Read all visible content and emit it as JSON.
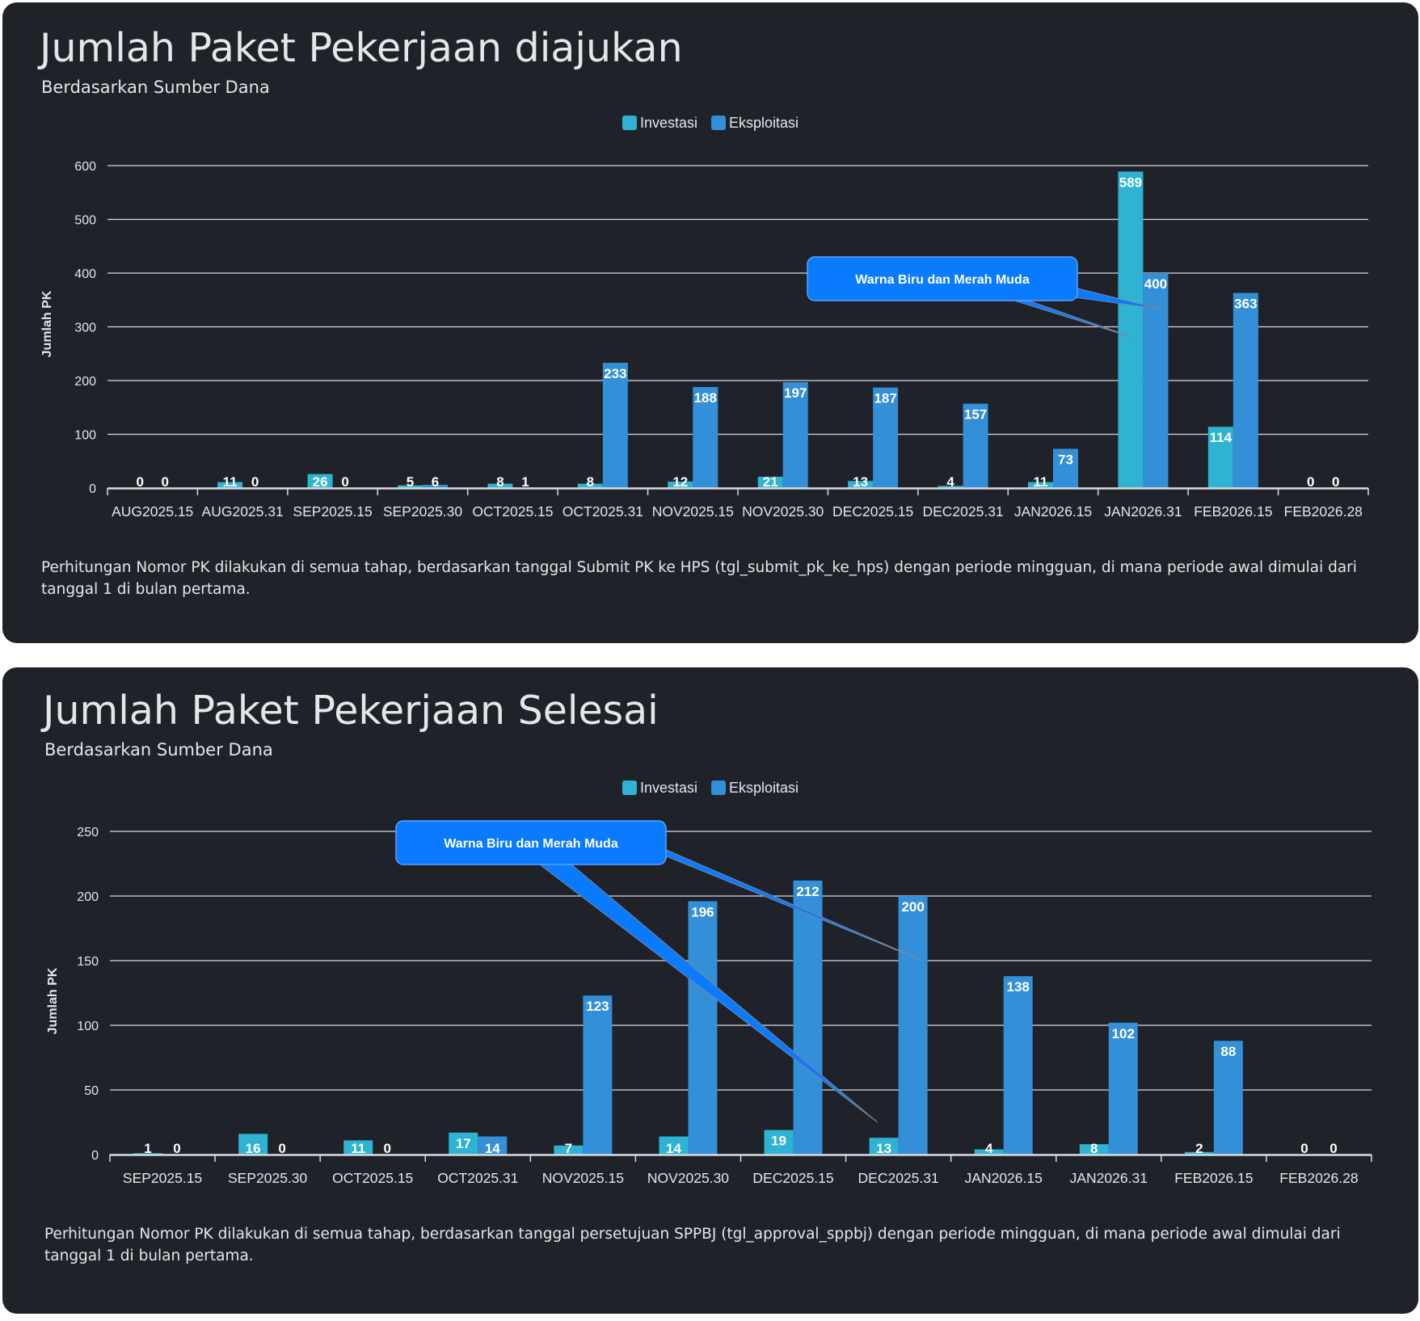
{
  "colors": {
    "investasi": "#2eb3d2",
    "eksploitasi": "#338fd7",
    "callout": "#0a7aff",
    "grid": "#d8dbe0",
    "text": "#e4e6ea"
  },
  "panels": [
    {
      "title": "Jumlah Paket Pekerjaan diajukan",
      "subtitle": "Berdasarkan Sumber Dana",
      "description": "Perhitungan Nomor PK dilakukan di semua tahap, berdasarkan tanggal Submit PK ke HPS (tgl_submit_pk_ke_hps) dengan periode mingguan, di mana periode awal dimulai dari tanggal 1 di bulan pertama.",
      "callout": "Warna Biru dan Merah Muda"
    },
    {
      "title": "Jumlah Paket Pekerjaan Selesai",
      "subtitle": "Berdasarkan Sumber Dana",
      "description": "Perhitungan Nomor PK dilakukan di semua tahap, berdasarkan tanggal persetujuan SPPBJ (tgl_approval_sppbj) dengan periode mingguan, di mana periode awal dimulai dari tanggal 1 di bulan pertama.",
      "callout": "Warna Biru dan Merah Muda"
    }
  ],
  "chart_data": [
    {
      "type": "bar",
      "title": "Jumlah Paket Pekerjaan diajukan",
      "subtitle": "Berdasarkan Sumber Dana",
      "xlabel": "",
      "ylabel": "Jumlah PK",
      "ylim": [
        0,
        600
      ],
      "yticks": [
        0,
        100,
        200,
        300,
        400,
        500,
        600
      ],
      "grid": true,
      "legend_position": "top-center",
      "categories": [
        "AUG2025.15",
        "AUG2025.31",
        "SEP2025.15",
        "SEP2025.30",
        "OCT2025.15",
        "OCT2025.31",
        "NOV2025.15",
        "NOV2025.30",
        "DEC2025.15",
        "DEC2025.31",
        "JAN2026.15",
        "JAN2026.31",
        "FEB2026.15",
        "FEB2026.28"
      ],
      "series": [
        {
          "name": "Investasi",
          "values": [
            0,
            11,
            26,
            5,
            8,
            8,
            12,
            21,
            13,
            4,
            11,
            589,
            114,
            0
          ]
        },
        {
          "name": "Eksploitasi",
          "values": [
            0,
            0,
            0,
            6,
            1,
            233,
            188,
            197,
            187,
            157,
            73,
            400,
            363,
            0
          ]
        }
      ],
      "annotation": {
        "text": "Warna Biru dan Merah Muda",
        "points_to": [
          "JAN2026.31 Investasi",
          "JAN2026.31 Eksploitasi"
        ]
      }
    },
    {
      "type": "bar",
      "title": "Jumlah Paket Pekerjaan Selesai",
      "subtitle": "Berdasarkan Sumber Dana",
      "xlabel": "",
      "ylabel": "Jumlah PK",
      "ylim": [
        0,
        250
      ],
      "yticks": [
        0,
        50,
        100,
        150,
        200,
        250
      ],
      "grid": true,
      "legend_position": "top-center",
      "categories": [
        "SEP2025.15",
        "SEP2025.30",
        "OCT2025.15",
        "OCT2025.31",
        "NOV2025.15",
        "NOV2025.30",
        "DEC2025.15",
        "DEC2025.31",
        "JAN2026.15",
        "JAN2026.31",
        "FEB2026.15",
        "FEB2026.28"
      ],
      "series": [
        {
          "name": "Investasi",
          "values": [
            1,
            16,
            11,
            17,
            7,
            14,
            19,
            13,
            4,
            8,
            2,
            0
          ]
        },
        {
          "name": "Eksploitasi",
          "values": [
            0,
            0,
            0,
            14,
            123,
            196,
            212,
            200,
            138,
            102,
            88,
            0
          ]
        }
      ],
      "annotation": {
        "text": "Warna Biru dan Merah Muda",
        "points_to": [
          "DEC2025.31 Investasi",
          "DEC2025.31 Eksploitasi"
        ]
      }
    }
  ]
}
